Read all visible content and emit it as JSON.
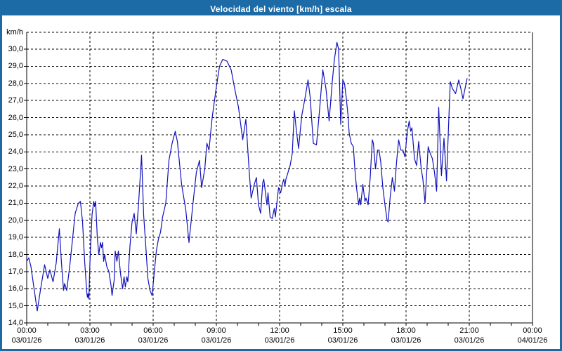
{
  "window": {
    "title": "Velocidad del viento [km/h] escala"
  },
  "colors": {
    "titlebar": "#1c6aa6",
    "window_border": "#1c6aa6",
    "background": "#ffffff",
    "grid": "#000000",
    "axis": "#000000",
    "text": "#000000",
    "line": "#1111bb"
  },
  "chart_data": {
    "type": "line",
    "title": "Velocidad del viento [km/h] escala",
    "unit_label": "km/h",
    "xlabel": "",
    "ylabel": "km/h",
    "ylim": [
      14,
      31
    ],
    "xlim_hours": [
      0,
      24
    ],
    "grid": "dashed",
    "legend": "none",
    "y_ticks": [
      {
        "value": 30,
        "label": "30,0"
      },
      {
        "value": 29,
        "label": "29,0"
      },
      {
        "value": 28,
        "label": "28,0"
      },
      {
        "value": 27,
        "label": "27,0"
      },
      {
        "value": 26,
        "label": "26,0"
      },
      {
        "value": 25,
        "label": "25,0"
      },
      {
        "value": 24,
        "label": "24,0"
      },
      {
        "value": 23,
        "label": "23,0"
      },
      {
        "value": 22,
        "label": "22,0"
      },
      {
        "value": 21,
        "label": "21,0"
      },
      {
        "value": 20,
        "label": "20,0"
      },
      {
        "value": 19,
        "label": "19,0"
      },
      {
        "value": 18,
        "label": "18,0"
      },
      {
        "value": 17,
        "label": "17,0"
      },
      {
        "value": 16,
        "label": "16,0"
      },
      {
        "value": 15,
        "label": "15,0"
      },
      {
        "value": 14,
        "label": "14,0"
      }
    ],
    "x_ticks": [
      {
        "hour": 0,
        "time": "00:00",
        "date": "03/01/26"
      },
      {
        "hour": 3,
        "time": "03:00",
        "date": "03/01/26"
      },
      {
        "hour": 6,
        "time": "06:00",
        "date": "03/01/26"
      },
      {
        "hour": 9,
        "time": "09:00",
        "date": "03/01/26"
      },
      {
        "hour": 12,
        "time": "12:00",
        "date": "03/01/26"
      },
      {
        "hour": 15,
        "time": "15:00",
        "date": "03/01/26"
      },
      {
        "hour": 18,
        "time": "18:00",
        "date": "03/01/26"
      },
      {
        "hour": 21,
        "time": "21:00",
        "date": "03/01/26"
      },
      {
        "hour": 24,
        "time": "00:00",
        "date": "04/01/26"
      }
    ],
    "series": [
      {
        "name": "wind-speed-kmh",
        "points": [
          [
            0,
            17.6
          ],
          [
            0.1,
            17.8
          ],
          [
            0.2,
            17.3
          ],
          [
            0.35,
            16.0
          ],
          [
            0.5,
            14.7
          ],
          [
            0.65,
            15.9
          ],
          [
            0.85,
            17.4
          ],
          [
            1.0,
            16.6
          ],
          [
            1.1,
            17.1
          ],
          [
            1.25,
            16.4
          ],
          [
            1.4,
            17.5
          ],
          [
            1.55,
            19.5
          ],
          [
            1.65,
            17.5
          ],
          [
            1.75,
            15.9
          ],
          [
            1.8,
            16.3
          ],
          [
            1.9,
            15.9
          ],
          [
            2.05,
            17.4
          ],
          [
            2.2,
            19.2
          ],
          [
            2.3,
            20.4
          ],
          [
            2.45,
            21.0
          ],
          [
            2.55,
            21.1
          ],
          [
            2.65,
            19.9
          ],
          [
            2.75,
            17.6
          ],
          [
            2.85,
            15.8
          ],
          [
            2.88,
            15.5
          ],
          [
            2.91,
            15.7
          ],
          [
            2.95,
            15.4
          ],
          [
            3.0,
            17.5
          ],
          [
            3.1,
            20.3
          ],
          [
            3.18,
            21.1
          ],
          [
            3.22,
            20.8
          ],
          [
            3.27,
            21.1
          ],
          [
            3.35,
            19.0
          ],
          [
            3.42,
            18.0
          ],
          [
            3.5,
            18.7
          ],
          [
            3.55,
            18.4
          ],
          [
            3.6,
            18.7
          ],
          [
            3.65,
            17.6
          ],
          [
            3.7,
            18.0
          ],
          [
            3.8,
            17.3
          ],
          [
            3.9,
            17.0
          ],
          [
            4.0,
            16.2
          ],
          [
            4.05,
            15.6
          ],
          [
            4.15,
            16.5
          ],
          [
            4.2,
            18.2
          ],
          [
            4.28,
            17.6
          ],
          [
            4.35,
            18.2
          ],
          [
            4.45,
            16.9
          ],
          [
            4.55,
            16.0
          ],
          [
            4.62,
            16.7
          ],
          [
            4.68,
            16.1
          ],
          [
            4.75,
            16.7
          ],
          [
            4.8,
            16.4
          ],
          [
            4.9,
            18.5
          ],
          [
            5.0,
            19.9
          ],
          [
            5.1,
            20.4
          ],
          [
            5.2,
            19.2
          ],
          [
            5.3,
            20.8
          ],
          [
            5.45,
            23.8
          ],
          [
            5.55,
            20.3
          ],
          [
            5.65,
            18.5
          ],
          [
            5.75,
            16.6
          ],
          [
            5.85,
            15.9
          ],
          [
            5.95,
            15.6
          ],
          [
            6.05,
            16.9
          ],
          [
            6.15,
            18.2
          ],
          [
            6.25,
            18.9
          ],
          [
            6.35,
            19.3
          ],
          [
            6.45,
            20.2
          ],
          [
            6.6,
            21.0
          ],
          [
            6.75,
            23.5
          ],
          [
            6.9,
            24.5
          ],
          [
            7.05,
            25.2
          ],
          [
            7.15,
            24.6
          ],
          [
            7.35,
            22.1
          ],
          [
            7.55,
            20.6
          ],
          [
            7.7,
            18.7
          ],
          [
            7.9,
            21.1
          ],
          [
            8.05,
            22.8
          ],
          [
            8.2,
            23.5
          ],
          [
            8.3,
            21.9
          ],
          [
            8.45,
            23.0
          ],
          [
            8.55,
            24.5
          ],
          [
            8.65,
            24.1
          ],
          [
            8.8,
            26.0
          ],
          [
            9.0,
            27.8
          ],
          [
            9.15,
            29.0
          ],
          [
            9.3,
            29.4
          ],
          [
            9.5,
            29.3
          ],
          [
            9.7,
            28.8
          ],
          [
            9.9,
            27.5
          ],
          [
            10.05,
            26.6
          ],
          [
            10.25,
            24.7
          ],
          [
            10.4,
            25.9
          ],
          [
            10.55,
            23.0
          ],
          [
            10.65,
            21.3
          ],
          [
            10.8,
            22.1
          ],
          [
            10.9,
            22.5
          ],
          [
            11.0,
            20.9
          ],
          [
            11.1,
            20.4
          ],
          [
            11.2,
            22.2
          ],
          [
            11.25,
            22.4
          ],
          [
            11.35,
            21.4
          ],
          [
            11.4,
            20.9
          ],
          [
            11.45,
            21.6
          ],
          [
            11.55,
            20.2
          ],
          [
            11.65,
            20.1
          ],
          [
            11.75,
            20.7
          ],
          [
            11.8,
            20.2
          ],
          [
            11.95,
            21.9
          ],
          [
            12.05,
            21.6
          ],
          [
            12.15,
            22.2
          ],
          [
            12.2,
            22.4
          ],
          [
            12.25,
            22.0
          ],
          [
            12.3,
            22.4
          ],
          [
            12.5,
            23.2
          ],
          [
            12.6,
            23.9
          ],
          [
            12.7,
            26.4
          ],
          [
            12.8,
            25.2
          ],
          [
            12.9,
            24.2
          ],
          [
            13.05,
            26.1
          ],
          [
            13.2,
            27.1
          ],
          [
            13.35,
            28.2
          ],
          [
            13.45,
            27.2
          ],
          [
            13.6,
            24.5
          ],
          [
            13.75,
            24.4
          ],
          [
            13.9,
            26.5
          ],
          [
            14.05,
            28.8
          ],
          [
            14.2,
            27.7
          ],
          [
            14.35,
            25.8
          ],
          [
            14.5,
            28.1
          ],
          [
            14.6,
            29.4
          ],
          [
            14.72,
            30.4
          ],
          [
            14.8,
            30.0
          ],
          [
            14.9,
            25.6
          ],
          [
            15.0,
            28.2
          ],
          [
            15.08,
            28.0
          ],
          [
            15.15,
            27.3
          ],
          [
            15.25,
            26.1
          ],
          [
            15.3,
            25.1
          ],
          [
            15.4,
            24.5
          ],
          [
            15.5,
            24.3
          ],
          [
            15.57,
            23.0
          ],
          [
            15.65,
            21.9
          ],
          [
            15.75,
            20.9
          ],
          [
            15.8,
            21.3
          ],
          [
            15.85,
            20.9
          ],
          [
            15.95,
            22.1
          ],
          [
            16.05,
            21.1
          ],
          [
            16.1,
            21.3
          ],
          [
            16.2,
            20.9
          ],
          [
            16.3,
            22.5
          ],
          [
            16.4,
            24.7
          ],
          [
            16.45,
            24.5
          ],
          [
            16.55,
            23.0
          ],
          [
            16.65,
            24.1
          ],
          [
            16.72,
            24.1
          ],
          [
            16.8,
            23.4
          ],
          [
            16.9,
            21.9
          ],
          [
            17.0,
            20.9
          ],
          [
            17.1,
            20.0
          ],
          [
            17.15,
            19.9
          ],
          [
            17.25,
            21.4
          ],
          [
            17.35,
            22.5
          ],
          [
            17.45,
            21.7
          ],
          [
            17.55,
            23.4
          ],
          [
            17.65,
            24.7
          ],
          [
            17.75,
            24.1
          ],
          [
            17.85,
            24.1
          ],
          [
            17.95,
            23.7
          ],
          [
            18.05,
            25.1
          ],
          [
            18.15,
            25.8
          ],
          [
            18.22,
            25.2
          ],
          [
            18.28,
            25.4
          ],
          [
            18.4,
            23.6
          ],
          [
            18.5,
            23.2
          ],
          [
            18.6,
            24.6
          ],
          [
            18.72,
            23.0
          ],
          [
            18.8,
            22.4
          ],
          [
            18.9,
            21.0
          ],
          [
            19.05,
            24.3
          ],
          [
            19.12,
            24.0
          ],
          [
            19.25,
            23.6
          ],
          [
            19.35,
            22.8
          ],
          [
            19.45,
            21.7
          ],
          [
            19.55,
            26.6
          ],
          [
            19.68,
            22.6
          ],
          [
            19.8,
            24.8
          ],
          [
            19.92,
            22.3
          ],
          [
            20.02,
            25.6
          ],
          [
            20.1,
            28.1
          ],
          [
            20.2,
            27.7
          ],
          [
            20.35,
            27.4
          ],
          [
            20.5,
            28.2
          ],
          [
            20.6,
            27.7
          ],
          [
            20.7,
            27.1
          ],
          [
            20.8,
            27.7
          ],
          [
            20.9,
            28.3
          ]
        ]
      }
    ]
  }
}
